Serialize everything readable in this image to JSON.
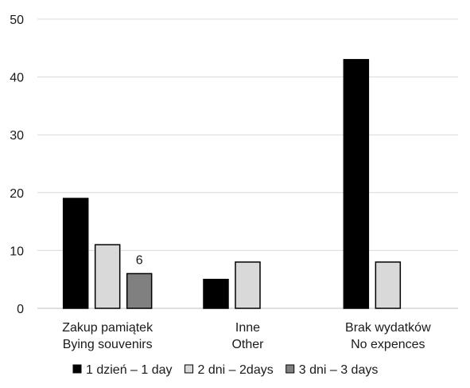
{
  "chart_data": {
    "type": "bar",
    "categories": [
      [
        "Zakup pamiątek",
        "Bying souvenirs"
      ],
      [
        "Inne",
        "Other"
      ],
      [
        "Brak wydatków",
        "No expences"
      ]
    ],
    "series": [
      {
        "name": "1 dzień – 1 day",
        "color": "#000000",
        "values": [
          19,
          5,
          43
        ]
      },
      {
        "name": "2 dni – 2days",
        "color": "#d9d9d9",
        "values": [
          11,
          8,
          8
        ]
      },
      {
        "name": "3 dni – 3 days",
        "color": "#808080",
        "values": [
          6,
          null,
          null
        ]
      }
    ],
    "data_labels": [
      {
        "series": 2,
        "category": 0,
        "text": "6"
      }
    ],
    "ylim": [
      0,
      50
    ],
    "yticks": [
      0,
      10,
      20,
      30,
      40,
      50
    ],
    "grid": true,
    "legend": "bottom",
    "title": "",
    "xlabel": "",
    "ylabel": ""
  }
}
